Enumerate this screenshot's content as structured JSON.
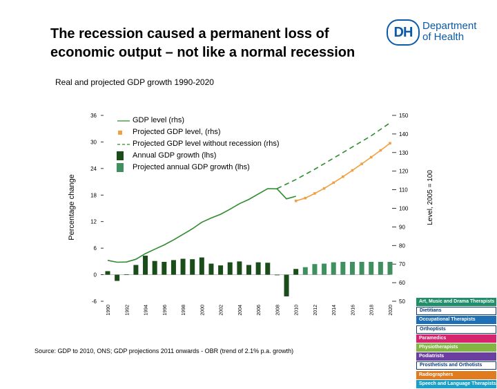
{
  "slide": {
    "title_lines": [
      "The recession caused a permanent loss of",
      "economic output – not like a normal recession"
    ],
    "source": "Source: GDP to 2010, ONS; GDP projections 2011 onwards - OBR (trend of 2.1% p.a. growth)"
  },
  "logo": {
    "badge": "DH",
    "name_lines": [
      "Department",
      "of Health"
    ],
    "color": "#0a5aa8"
  },
  "professions": [
    {
      "label": "Art, Music and Drama Therapists",
      "color": "#1f8f6a",
      "style": "filled"
    },
    {
      "label": "Dietitians",
      "color": "#0a3a7a",
      "style": "outlined"
    },
    {
      "label": "Occupational Therapists",
      "color": "#1f6fb6",
      "style": "filled"
    },
    {
      "label": "Orthoptists",
      "color": "#0a3a7a",
      "style": "outlined"
    },
    {
      "label": "Paramedics",
      "color": "#d6246e",
      "style": "filled"
    },
    {
      "label": "Physiotherapists",
      "color": "#82b541",
      "style": "filled"
    },
    {
      "label": "Podiatrists",
      "color": "#6b3fa0",
      "style": "filled"
    },
    {
      "label": "Prosthetists and Orthotists",
      "color": "#0a3a7a",
      "style": "outlined"
    },
    {
      "label": "Radiographers",
      "color": "#e07b1f",
      "style": "filled"
    },
    {
      "label": "Speech and Language Therapists",
      "color": "#1aa0c8",
      "style": "filled"
    }
  ],
  "chart_data": {
    "type": "bar+line",
    "title": "Real and projected GDP growth 1990-2020",
    "ylabel_left": "Percentage change",
    "ylabel_right": "Level, 2005 = 100",
    "y_left_range": [
      -6,
      36
    ],
    "y_left_ticks": [
      "36",
      "30",
      "24",
      "18",
      "12",
      "6",
      "0",
      "-6"
    ],
    "y_right_range": [
      50,
      150
    ],
    "y_right_ticks": [
      "150",
      "140",
      "130",
      "120",
      "110",
      "100",
      "90",
      "80",
      "70",
      "60",
      "50"
    ],
    "x_range": [
      1990,
      2020
    ],
    "x_ticks": [
      "1990",
      "1992",
      "1994",
      "1996",
      "1998",
      "2000",
      "2002",
      "2004",
      "2006",
      "2008",
      "2010",
      "2012",
      "2014",
      "2016",
      "2018",
      "2020"
    ],
    "legend": [
      {
        "label": "GDP level (rhs)",
        "key": "line",
        "color": "#2e8b2e"
      },
      {
        "label": "Projected GDP level, (rhs)",
        "key": "square",
        "color": "#f0a040"
      },
      {
        "label": "Projected GDP level without recession (rhs)",
        "key": "dash",
        "color": "#2e8b2e"
      },
      {
        "label": "Annual GDP growth (lhs)",
        "key": "bar",
        "color": "#1a4d1a"
      },
      {
        "label": "Projected annual GDP growth (lhs)",
        "key": "bar",
        "color": "#3f8f5f"
      }
    ],
    "series": [
      {
        "name": "Annual GDP growth (lhs)",
        "axis": "left",
        "kind": "bar",
        "color": "#1a4d1a",
        "x": [
          1990,
          1991,
          1992,
          1993,
          1994,
          1995,
          1996,
          1997,
          1998,
          1999,
          2000,
          2001,
          2002,
          2003,
          2004,
          2005,
          2006,
          2007,
          2008,
          2009,
          2010
        ],
        "values": [
          0.8,
          -1.4,
          0.1,
          2.2,
          4.3,
          3.1,
          2.9,
          3.3,
          3.6,
          3.5,
          3.9,
          2.5,
          2.1,
          2.8,
          3.0,
          2.2,
          2.8,
          2.7,
          -0.1,
          -4.9,
          1.3
        ]
      },
      {
        "name": "Projected annual GDP growth (lhs)",
        "axis": "left",
        "kind": "bar",
        "color": "#3f8f5f",
        "x": [
          2011,
          2012,
          2013,
          2014,
          2015,
          2016,
          2017,
          2018,
          2019,
          2020
        ],
        "values": [
          1.7,
          2.4,
          2.5,
          2.8,
          2.9,
          2.9,
          2.9,
          2.9,
          2.9,
          2.9
        ]
      },
      {
        "name": "GDP level (rhs)",
        "axis": "right",
        "kind": "line",
        "color": "#2e8b2e",
        "x": [
          1990,
          1991,
          1992,
          1993,
          1994,
          1995,
          1996,
          1997,
          1998,
          1999,
          2000,
          2001,
          2002,
          2003,
          2004,
          2005,
          2006,
          2007,
          2008,
          2009,
          2010
        ],
        "values": [
          72.0,
          71.0,
          71.1,
          72.6,
          75.6,
          78.0,
          80.3,
          83.0,
          86.0,
          89.0,
          92.5,
          94.8,
          96.8,
          99.5,
          102.5,
          104.8,
          107.7,
          110.6,
          110.5,
          105.1,
          106.5
        ]
      },
      {
        "name": "Projected GDP level, (rhs)",
        "axis": "right",
        "kind": "line-markers",
        "color": "#f0a040",
        "x": [
          2010,
          2011,
          2012,
          2013,
          2014,
          2015,
          2016,
          2017,
          2018,
          2019,
          2020
        ],
        "values": [
          104.0,
          105.5,
          108.0,
          110.7,
          113.8,
          117.0,
          120.4,
          123.9,
          127.5,
          131.2,
          135.0
        ]
      },
      {
        "name": "Projected GDP level without recession (rhs)",
        "axis": "right",
        "kind": "dashed-line",
        "color": "#2e8b2e",
        "x": [
          2008,
          2010,
          2012,
          2014,
          2016,
          2018,
          2020
        ],
        "values": [
          110.6,
          115.5,
          121.0,
          127.0,
          133.0,
          139.0,
          146.0
        ]
      }
    ],
    "grid": false,
    "legend_position": "top-left"
  }
}
